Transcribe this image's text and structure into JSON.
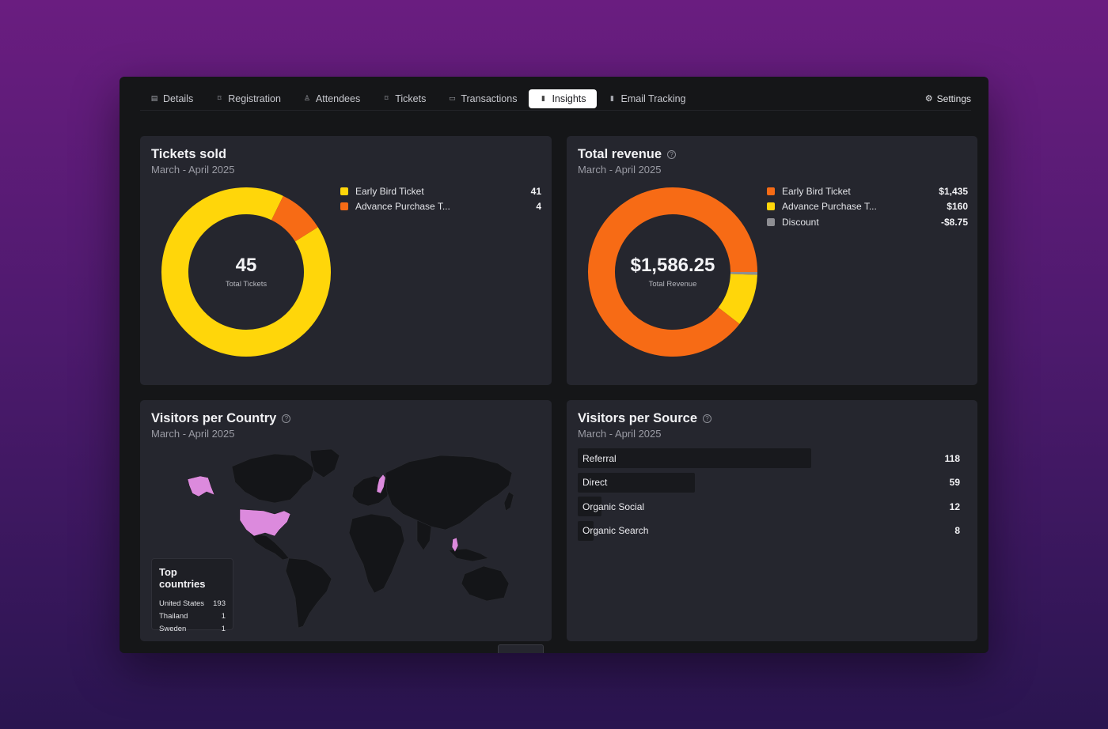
{
  "tabs": [
    {
      "label": "Details",
      "icon": "document-icon",
      "glyph": "▤"
    },
    {
      "label": "Registration",
      "icon": "bookmark-icon",
      "glyph": "⌑"
    },
    {
      "label": "Attendees",
      "icon": "user-icon",
      "glyph": "♙"
    },
    {
      "label": "Tickets",
      "icon": "ticket-icon",
      "glyph": "⌑"
    },
    {
      "label": "Transactions",
      "icon": "card-icon",
      "glyph": "▭"
    },
    {
      "label": "Insights",
      "icon": "bar-chart-icon",
      "glyph": "▮",
      "active": true
    },
    {
      "label": "Email Tracking",
      "icon": "bar-chart-icon",
      "glyph": "▮"
    }
  ],
  "settings": {
    "label": "Settings",
    "icon": "gear-icon",
    "glyph": "⚙"
  },
  "tickets_sold": {
    "title": "Tickets sold",
    "subtitle": "March - April 2025",
    "center_value": "45",
    "center_label": "Total Tickets",
    "legend": [
      {
        "label": "Early Bird Ticket",
        "value": "41",
        "color": "#ffd60a"
      },
      {
        "label": "Advance Purchase T...",
        "value": "4",
        "color": "#f76b15"
      }
    ]
  },
  "total_revenue": {
    "title": "Total revenue",
    "subtitle": "March - April 2025",
    "center_value": "$1,586.25",
    "center_label": "Total Revenue",
    "legend": [
      {
        "label": "Early Bird Ticket",
        "value": "$1,435",
        "color": "#f76b15"
      },
      {
        "label": "Advance Purchase T...",
        "value": "$160",
        "color": "#ffd60a"
      },
      {
        "label": "Discount",
        "value": "-$8.75",
        "color": "#8e8e93"
      }
    ]
  },
  "visitors_country": {
    "title": "Visitors per Country",
    "subtitle": "March - April 2025",
    "highlight_color": "#dc8add",
    "land_color": "#141518",
    "top_title": "Top countries",
    "top": [
      {
        "country": "United States",
        "count": "193"
      },
      {
        "country": "Thailand",
        "count": "1"
      },
      {
        "country": "Sweden",
        "count": "1"
      }
    ]
  },
  "visitors_source": {
    "title": "Visitors per Source",
    "subtitle": "March - April 2025",
    "rows": [
      {
        "label": "Referral",
        "value": "118",
        "share": 1.0
      },
      {
        "label": "Direct",
        "value": "59",
        "share": 0.5
      },
      {
        "label": "Organic Social",
        "value": "12",
        "share": 0.1
      },
      {
        "label": "Organic Search",
        "value": "8",
        "share": 0.068
      }
    ]
  },
  "chart_data": [
    {
      "type": "pie",
      "title": "Tickets sold",
      "categories": [
        "Early Bird Ticket",
        "Advance Purchase T..."
      ],
      "values": [
        41,
        4
      ],
      "total": 45
    },
    {
      "type": "pie",
      "title": "Total revenue",
      "categories": [
        "Early Bird Ticket",
        "Advance Purchase T...",
        "Discount"
      ],
      "values": [
        1435,
        160,
        8.75
      ],
      "total": 1586.25
    },
    {
      "type": "bar",
      "title": "Visitors per Source",
      "categories": [
        "Referral",
        "Direct",
        "Organic Social",
        "Organic Search"
      ],
      "values": [
        118,
        59,
        12,
        8
      ]
    }
  ]
}
